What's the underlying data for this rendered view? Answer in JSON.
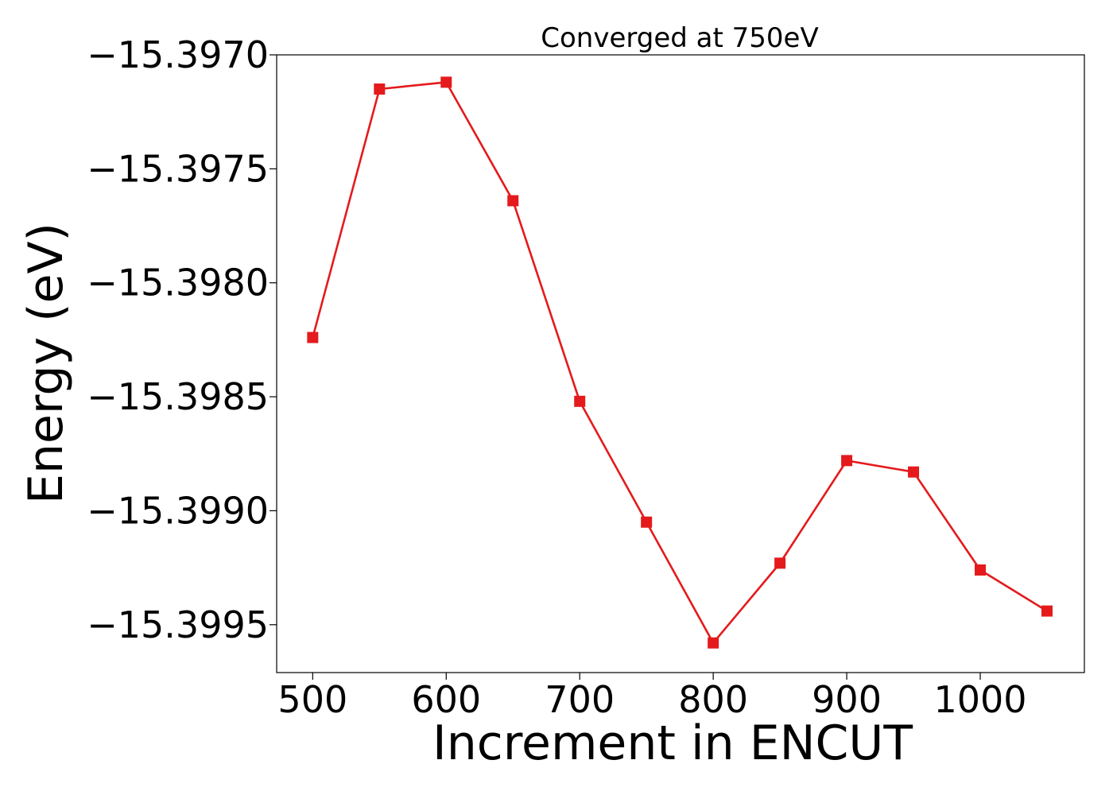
{
  "chart_data": {
    "type": "line",
    "title": "Converged at 750eV",
    "xlabel": "Increment in ENCUT",
    "ylabel": "Energy (eV)",
    "xlim": [
      473,
      1078
    ],
    "ylim": [
      -15.39971,
      -15.397
    ],
    "xticks": [
      500,
      600,
      700,
      800,
      900,
      1000
    ],
    "xtick_labels": [
      "500",
      "600",
      "700",
      "800",
      "900",
      "1000"
    ],
    "yticks": [
      -15.397,
      -15.3975,
      -15.398,
      -15.3985,
      -15.399,
      -15.3995
    ],
    "ytick_labels": [
      "−15.3970",
      "−15.3975",
      "−15.3980",
      "−15.3985",
      "−15.3990",
      "−15.3995"
    ],
    "grid": false,
    "series": [
      {
        "marker": "square",
        "color": "#e41a1c",
        "x": [
          500,
          550,
          600,
          650,
          700,
          750,
          800,
          850,
          900,
          950,
          1000,
          1050
        ],
        "y": [
          -15.39824,
          -15.39715,
          -15.39712,
          -15.39764,
          -15.39852,
          -15.39905,
          -15.39958,
          -15.39923,
          -15.39878,
          -15.39883,
          -15.39926,
          -15.39944
        ]
      }
    ]
  }
}
